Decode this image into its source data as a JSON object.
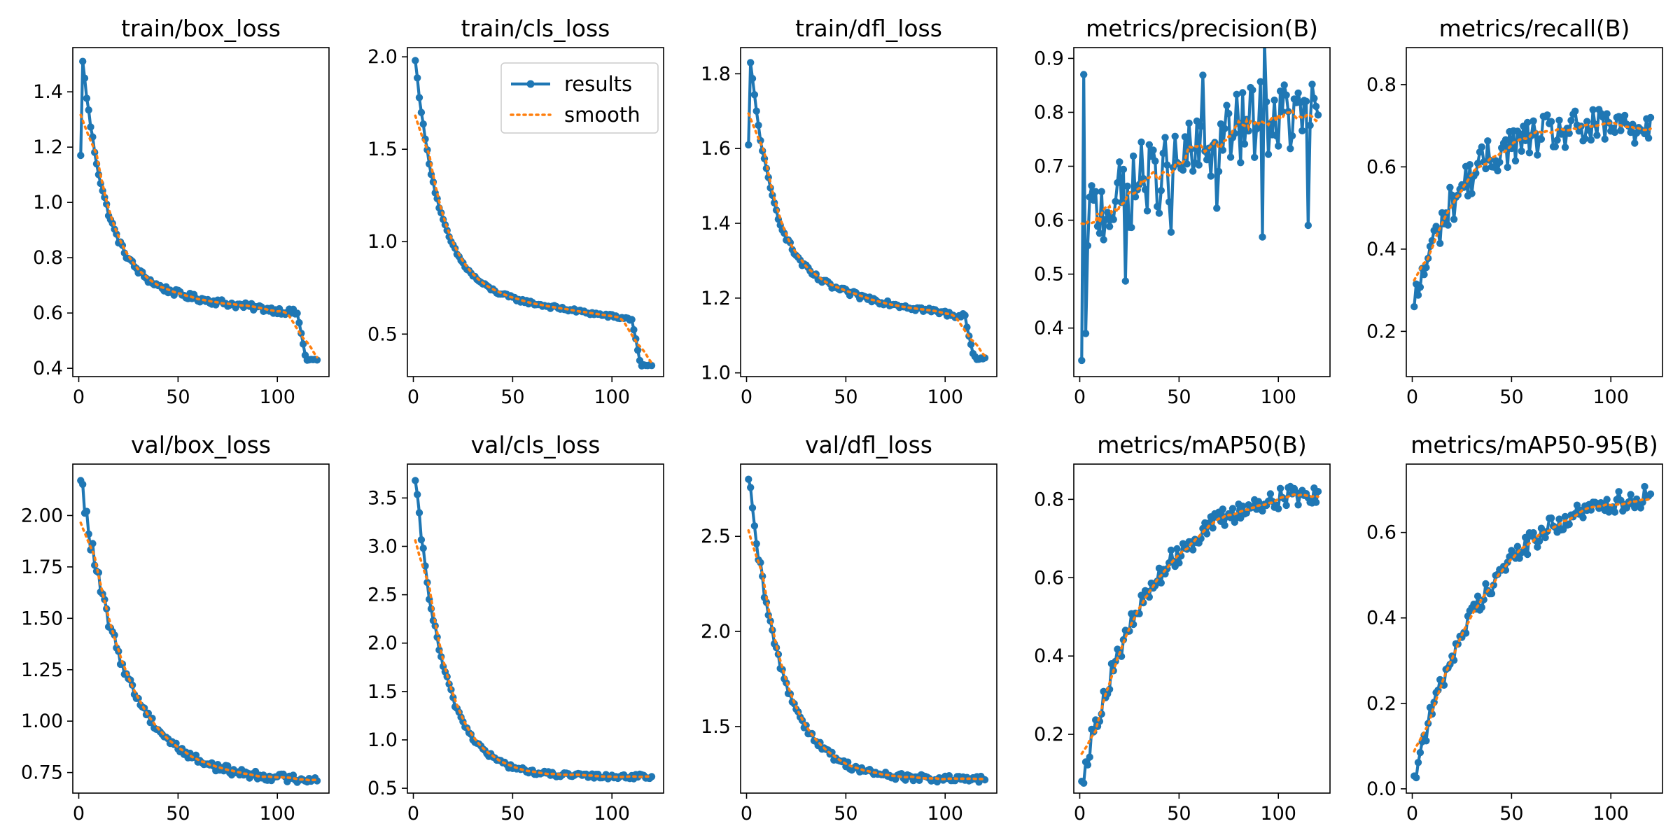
{
  "colors": {
    "results": "#1f77b4",
    "smooth": "#ff7f0e",
    "axis": "#000000",
    "background": "#ffffff"
  },
  "legend": {
    "results_label": "results",
    "smooth_label": "smooth",
    "placement": "upper right of train/cls_loss panel"
  },
  "chart_data": [
    {
      "type": "line",
      "title": "train/box_loss",
      "xlim": [
        -3,
        126
      ],
      "ylim": [
        0.37,
        1.56
      ],
      "xticks": [
        0,
        50,
        100
      ],
      "yticks": [
        0.4,
        0.6,
        0.8,
        1.0,
        1.2,
        1.4
      ],
      "ytick_labels": [
        "0.4",
        "0.6",
        "0.8",
        "1.0",
        "1.2",
        "1.4"
      ],
      "profile": {
        "start": 1.17,
        "peak": 1.51,
        "peak_epoch": 2,
        "mid": 0.7,
        "before_drop": 0.6,
        "drop_epoch": 110,
        "end": 0.43,
        "noise": 0.012,
        "kind": "loss"
      },
      "series": [
        {
          "name": "results"
        },
        {
          "name": "smooth"
        }
      ]
    },
    {
      "type": "line",
      "title": "train/cls_loss",
      "xlim": [
        -3,
        126
      ],
      "ylim": [
        0.27,
        2.05
      ],
      "xticks": [
        0,
        50,
        100
      ],
      "yticks": [
        0.5,
        1.0,
        1.5,
        2.0
      ],
      "ytick_labels": [
        "0.5",
        "1.0",
        "1.5",
        "2.0"
      ],
      "profile": {
        "start": 1.98,
        "peak": 1.98,
        "peak_epoch": 1,
        "mid": 0.75,
        "before_drop": 0.58,
        "drop_epoch": 110,
        "end": 0.33,
        "noise": 0.01,
        "kind": "loss"
      },
      "series": [
        {
          "name": "results"
        },
        {
          "name": "smooth"
        }
      ],
      "has_legend": true
    },
    {
      "type": "line",
      "title": "train/dfl_loss",
      "xlim": [
        -3,
        126
      ],
      "ylim": [
        0.99,
        1.87
      ],
      "xticks": [
        0,
        50,
        100
      ],
      "yticks": [
        1.0,
        1.2,
        1.4,
        1.6,
        1.8
      ],
      "ytick_labels": [
        "1.0",
        "1.2",
        "1.4",
        "1.6",
        "1.8"
      ],
      "profile": {
        "start": 1.61,
        "peak": 1.83,
        "peak_epoch": 2,
        "mid": 1.25,
        "before_drop": 1.15,
        "drop_epoch": 110,
        "end": 1.04,
        "noise": 0.008,
        "kind": "loss"
      },
      "series": [
        {
          "name": "results"
        },
        {
          "name": "smooth"
        }
      ]
    },
    {
      "type": "line",
      "title": "metrics/precision(B)",
      "xlim": [
        -3,
        126
      ],
      "ylim": [
        0.31,
        0.92
      ],
      "xticks": [
        0,
        50,
        100
      ],
      "yticks": [
        0.4,
        0.5,
        0.6,
        0.7,
        0.8,
        0.9
      ],
      "ytick_labels": [
        "0.4",
        "0.5",
        "0.6",
        "0.7",
        "0.8",
        "0.9"
      ],
      "profile": {
        "start": 0.34,
        "level_early": 0.6,
        "level_late": 0.79,
        "end": 0.795,
        "noise": 0.07,
        "kind": "noisy"
      },
      "series": [
        {
          "name": "results"
        },
        {
          "name": "smooth"
        }
      ]
    },
    {
      "type": "line",
      "title": "metrics/recall(B)",
      "xlim": [
        -3,
        126
      ],
      "ylim": [
        0.09,
        0.89
      ],
      "xticks": [
        0,
        50,
        100
      ],
      "yticks": [
        0.2,
        0.4,
        0.6,
        0.8
      ],
      "ytick_labels": [
        "0.2",
        "0.4",
        "0.6",
        "0.8"
      ],
      "profile": {
        "start": 0.26,
        "plateau": 0.7,
        "rate": 0.045,
        "end": 0.72,
        "noise": 0.035,
        "kind": "rise"
      },
      "series": [
        {
          "name": "results"
        },
        {
          "name": "smooth"
        }
      ]
    },
    {
      "type": "line",
      "title": "val/box_loss",
      "xlim": [
        -3,
        126
      ],
      "ylim": [
        0.65,
        2.25
      ],
      "xticks": [
        0,
        50,
        100
      ],
      "yticks": [
        0.75,
        1.0,
        1.25,
        1.5,
        1.75,
        2.0
      ],
      "ytick_labels": [
        "0.75",
        "1.00",
        "1.25",
        "1.50",
        "1.75",
        "2.00"
      ],
      "profile": {
        "start": 2.17,
        "plateau": 0.71,
        "rate": 0.045,
        "end": 0.71,
        "noise": 0.02,
        "kind": "decay"
      },
      "series": [
        {
          "name": "results"
        },
        {
          "name": "smooth"
        }
      ]
    },
    {
      "type": "line",
      "title": "val/cls_loss",
      "xlim": [
        -3,
        126
      ],
      "ylim": [
        0.45,
        3.85
      ],
      "xticks": [
        0,
        50,
        100
      ],
      "yticks": [
        0.5,
        1.0,
        1.5,
        2.0,
        2.5,
        3.0,
        3.5
      ],
      "ytick_labels": [
        "0.5",
        "1.0",
        "1.5",
        "2.0",
        "2.5",
        "3.0",
        "3.5"
      ],
      "profile": {
        "start": 3.68,
        "plateau": 0.62,
        "rate": 0.07,
        "end": 0.62,
        "noise": 0.025,
        "kind": "decay"
      },
      "series": [
        {
          "name": "results"
        },
        {
          "name": "smooth"
        }
      ]
    },
    {
      "type": "line",
      "title": "val/dfl_loss",
      "xlim": [
        -3,
        126
      ],
      "ylim": [
        1.15,
        2.88
      ],
      "xticks": [
        0,
        50,
        100
      ],
      "yticks": [
        1.5,
        2.0,
        2.5
      ],
      "ytick_labels": [
        "1.5",
        "2.0",
        "2.5"
      ],
      "profile": {
        "start": 2.8,
        "plateau": 1.22,
        "rate": 0.06,
        "end": 1.22,
        "noise": 0.018,
        "kind": "decay"
      },
      "series": [
        {
          "name": "results"
        },
        {
          "name": "smooth"
        }
      ]
    },
    {
      "type": "line",
      "title": "metrics/mAP50(B)",
      "xlim": [
        -3,
        126
      ],
      "ylim": [
        0.05,
        0.89
      ],
      "xticks": [
        0,
        50,
        100
      ],
      "yticks": [
        0.2,
        0.4,
        0.6,
        0.8
      ],
      "ytick_labels": [
        "0.2",
        "0.4",
        "0.6",
        "0.8"
      ],
      "profile": {
        "start": 0.08,
        "plateau": 0.84,
        "rate": 0.03,
        "end": 0.82,
        "noise": 0.02,
        "kind": "rise"
      },
      "series": [
        {
          "name": "results"
        },
        {
          "name": "smooth"
        }
      ]
    },
    {
      "type": "line",
      "title": "metrics/mAP50-95(B)",
      "xlim": [
        -3,
        126
      ],
      "ylim": [
        -0.01,
        0.76
      ],
      "xticks": [
        0,
        50,
        100
      ],
      "yticks": [
        0.0,
        0.2,
        0.4,
        0.6
      ],
      "ytick_labels": [
        "0.0",
        "0.2",
        "0.4",
        "0.6"
      ],
      "profile": {
        "start": 0.03,
        "plateau": 0.71,
        "rate": 0.028,
        "end": 0.69,
        "noise": 0.018,
        "kind": "rise"
      },
      "series": [
        {
          "name": "results"
        },
        {
          "name": "smooth"
        }
      ]
    }
  ],
  "epochs": 120
}
